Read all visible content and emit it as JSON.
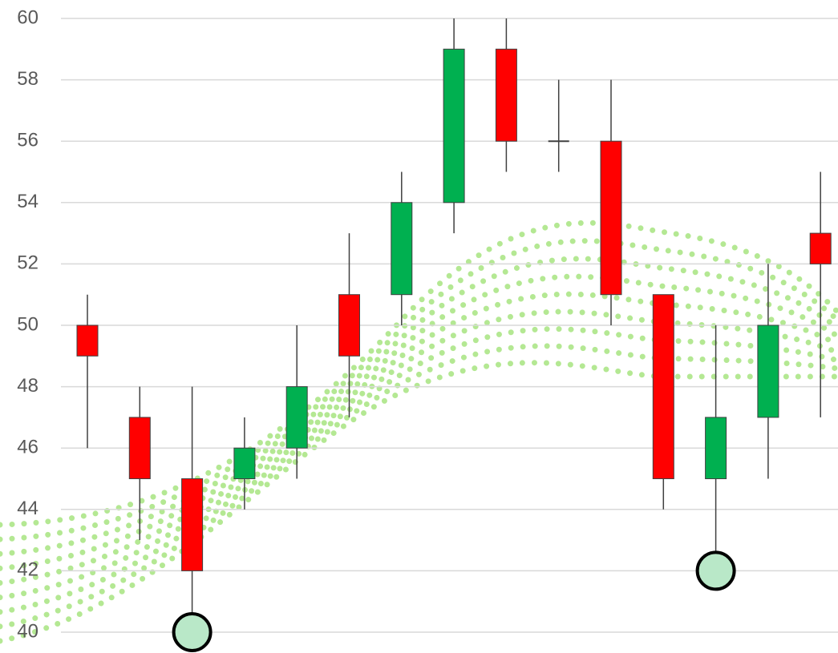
{
  "chart_data": {
    "type": "candlestick",
    "open": [
      50,
      47,
      45,
      45,
      46,
      51,
      51,
      54,
      59,
      56,
      56,
      51,
      45,
      47,
      53
    ],
    "high": [
      51,
      48,
      48,
      47,
      50,
      53,
      55,
      60,
      60,
      58,
      58,
      51,
      50,
      52,
      55
    ],
    "low": [
      46,
      43,
      40,
      44,
      45,
      47,
      50,
      53,
      55,
      55,
      50,
      44,
      42,
      45,
      47
    ],
    "close": [
      49,
      45,
      42,
      46,
      48,
      49,
      54,
      59,
      56,
      56,
      51,
      45,
      47,
      50,
      52
    ],
    "up_color": "#00b050",
    "down_color": "#ff0000",
    "highlight_low": [
      2,
      12
    ],
    "ylim": [
      40,
      60
    ],
    "yticks": [
      40,
      42,
      44,
      46,
      48,
      50,
      52,
      54,
      56,
      58,
      60
    ],
    "grid": true
  }
}
